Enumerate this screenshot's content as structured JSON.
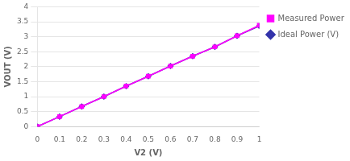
{
  "chart_data": {
    "type": "line",
    "xlabel": "V2 (V)",
    "ylabel": "VOUT (V)",
    "x": [
      0,
      0.1,
      0.2,
      0.3,
      0.4,
      0.5,
      0.6,
      0.7,
      0.8,
      0.9,
      1.0
    ],
    "series": [
      {
        "name": "Measured Power (V)",
        "color": "#ff00ff",
        "marker": "square",
        "values": [
          0,
          0.33,
          0.67,
          1.0,
          1.35,
          1.68,
          2.02,
          2.35,
          2.66,
          3.03,
          3.38
        ]
      },
      {
        "name": "Ideal Power (V)",
        "color": "#3333aa",
        "marker": "diamond",
        "values": [
          0,
          0.33,
          0.67,
          1.0,
          1.35,
          1.68,
          2.02,
          2.35,
          2.66,
          3.03,
          3.36
        ]
      }
    ],
    "xlim": [
      0,
      1.0
    ],
    "ylim": [
      0,
      4.0
    ],
    "xticks": [
      0,
      0.1,
      0.2,
      0.3,
      0.4,
      0.5,
      0.6,
      0.7,
      0.8,
      0.9,
      1
    ],
    "yticks": [
      0,
      0.5,
      1,
      1.5,
      2,
      2.5,
      3,
      3.5,
      4
    ],
    "grid": "y",
    "legend": "right"
  }
}
